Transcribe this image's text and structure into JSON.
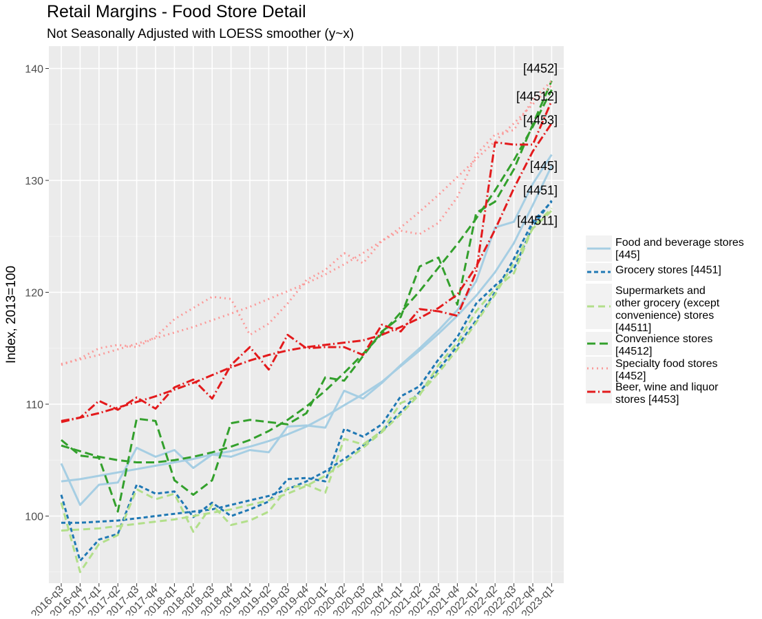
{
  "chart_data": {
    "type": "line",
    "title": "Retail Margins - Food Store Detail",
    "subtitle": "Not Seasonally Adjusted with LOESS smoother (y~x)",
    "ylabel": "Index, 2013=100",
    "xlabel": "",
    "ylim": [
      94,
      142
    ],
    "yticks": [
      100,
      110,
      120,
      130,
      140
    ],
    "grid": true,
    "legend_position": "right",
    "categories": [
      "2016-q3",
      "2016-q4",
      "2017-q1",
      "2017-q2",
      "2017-q3",
      "2017-q4",
      "2018-q1",
      "2018-q2",
      "2018-q3",
      "2018-q4",
      "2019-q1",
      "2019-q2",
      "2019-q3",
      "2019-q4",
      "2020-q1",
      "2020-q2",
      "2020-q3",
      "2020-q4",
      "2021-q1",
      "2021-q2",
      "2021-q3",
      "2021-q4",
      "2022-q1",
      "2022-q2",
      "2022-q3",
      "2022-q4",
      "2023-q1"
    ],
    "series": [
      {
        "name": "Food and beverage stores [445]",
        "end_label": "[445]",
        "color": "#a6cee3",
        "dash": "",
        "values": [
          104.7,
          101.0,
          102.8,
          103.0,
          106.1,
          105.3,
          105.9,
          104.3,
          105.5,
          105.3,
          105.9,
          105.7,
          108.0,
          108.1,
          107.9,
          111.2,
          110.5,
          111.9,
          113.5,
          115.0,
          116.6,
          118.4,
          121.0,
          125.8,
          126.3,
          129.7,
          132.3
        ],
        "smooth": [
          103.1,
          103.3,
          103.6,
          103.9,
          104.2,
          104.5,
          104.8,
          105.1,
          105.5,
          105.8,
          106.2,
          106.7,
          107.3,
          108.0,
          108.9,
          109.9,
          110.9,
          112.0,
          113.4,
          114.8,
          116.3,
          117.9,
          119.7,
          121.8,
          124.4,
          127.8,
          131.3
        ]
      },
      {
        "name": "Grocery stores [4451]",
        "end_label": "[4451]",
        "color": "#1f78b4",
        "dash": "6,4",
        "values": [
          101.9,
          96.0,
          97.9,
          98.4,
          102.8,
          102.0,
          102.2,
          99.9,
          101.2,
          100.0,
          100.6,
          101.3,
          103.3,
          103.4,
          103.1,
          107.8,
          107.1,
          108.2,
          110.7,
          111.6,
          114.0,
          116.0,
          119.0,
          120.6,
          122.1,
          125.9,
          128.2
        ],
        "smooth": [
          99.4,
          99.4,
          99.5,
          99.6,
          99.8,
          100.0,
          100.2,
          100.4,
          100.6,
          101.0,
          101.4,
          101.8,
          102.4,
          103.1,
          104.0,
          105.1,
          106.3,
          107.6,
          109.3,
          111.1,
          113.1,
          115.2,
          117.5,
          120.0,
          123.0,
          126.3,
          128.1
        ]
      },
      {
        "name": "Supermarkets and other grocery (except convenience) stores [44511]",
        "end_label": "[44511]",
        "color": "#b2df8a",
        "dash": "10,6",
        "values": [
          101.2,
          95.0,
          97.5,
          98.3,
          102.4,
          101.5,
          102.0,
          98.6,
          101.0,
          99.2,
          99.6,
          100.4,
          102.5,
          102.8,
          102.1,
          106.9,
          106.4,
          107.6,
          110.1,
          110.8,
          113.5,
          115.5,
          118.3,
          120.3,
          121.7,
          125.8,
          127.5
        ],
        "smooth": [
          98.7,
          98.8,
          98.9,
          99.1,
          99.3,
          99.5,
          99.7,
          100.0,
          100.3,
          100.6,
          101.0,
          101.4,
          102.0,
          102.7,
          103.6,
          104.8,
          106.1,
          107.5,
          109.1,
          110.9,
          112.8,
          114.9,
          117.3,
          119.8,
          122.6,
          125.7,
          127.3
        ]
      },
      {
        "name": "Convenience stores [44512]",
        "end_label": "[44512]",
        "color": "#33a02c",
        "dash": "12,6",
        "values": [
          106.8,
          105.4,
          105.2,
          100.4,
          108.7,
          108.5,
          103.2,
          101.9,
          103.2,
          108.3,
          108.6,
          108.4,
          108.2,
          109.2,
          112.4,
          112.1,
          114.3,
          116.5,
          117.8,
          122.3,
          123.1,
          118.9,
          127.1,
          128.1,
          131.0,
          135.0,
          138.9
        ],
        "smooth": [
          106.3,
          105.8,
          105.3,
          105.0,
          104.8,
          104.8,
          105.0,
          105.3,
          105.7,
          106.2,
          106.8,
          107.6,
          108.6,
          109.8,
          111.2,
          112.8,
          114.5,
          116.3,
          118.2,
          120.1,
          122.2,
          124.3,
          126.6,
          129.1,
          131.8,
          134.8,
          138.1
        ]
      },
      {
        "name": "Specialty food stores [4452]",
        "end_label": "[4452]",
        "color": "#fb9a99",
        "dash": "2,5",
        "values": [
          113.5,
          114.1,
          115.0,
          115.3,
          115.1,
          116.0,
          117.6,
          118.6,
          119.6,
          119.4,
          116.2,
          117.2,
          119.0,
          121.1,
          122.0,
          123.5,
          122.6,
          124.6,
          125.5,
          125.2,
          126.2,
          128.5,
          132.3,
          134.1,
          134.5,
          137.2,
          138.9
        ],
        "smooth": [
          113.6,
          114.0,
          114.4,
          114.9,
          115.4,
          115.9,
          116.4,
          116.9,
          117.5,
          118.1,
          118.7,
          119.4,
          120.1,
          120.8,
          121.6,
          122.5,
          123.5,
          124.6,
          125.8,
          127.2,
          128.7,
          130.3,
          131.9,
          133.5,
          135.1,
          136.8,
          138.5
        ]
      },
      {
        "name": "Beer, wine and liquor stores [4453]",
        "end_label": "[4453]",
        "color": "#e31a1c",
        "dash": "12,4,2,4",
        "values": [
          108.4,
          108.8,
          110.3,
          109.5,
          110.6,
          109.6,
          111.5,
          112.2,
          110.5,
          113.5,
          115.1,
          113.1,
          116.2,
          115.0,
          115.1,
          115.1,
          114.4,
          117.1,
          116.5,
          118.5,
          118.3,
          117.9,
          121.8,
          133.4,
          133.2,
          133.2,
          137.1
        ],
        "smooth": [
          108.5,
          108.8,
          109.2,
          109.7,
          110.2,
          110.7,
          111.3,
          111.9,
          112.6,
          113.3,
          113.9,
          114.4,
          114.8,
          115.1,
          115.3,
          115.5,
          115.7,
          116.2,
          116.9,
          117.7,
          118.6,
          119.8,
          122.3,
          125.6,
          129.3,
          132.6,
          135.1
        ]
      }
    ]
  }
}
